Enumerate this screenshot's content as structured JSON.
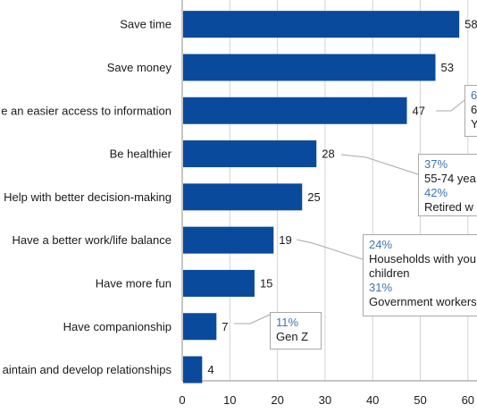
{
  "chart_data": {
    "type": "bar",
    "orientation": "horizontal",
    "categories": [
      "Save time",
      "Save money",
      "e an easier access to information",
      "Be healthier",
      "Help with better decision-making",
      "Have a better work/life balance",
      "Have more fun",
      "Have companionship",
      "aintain and develop relationships"
    ],
    "values": [
      58,
      53,
      47,
      28,
      25,
      19,
      15,
      7,
      4
    ],
    "value_labels": [
      "58",
      "53",
      "47",
      "28",
      "25",
      "19",
      "15",
      "7",
      "4"
    ],
    "xticks": [
      "0",
      "10",
      "20",
      "30",
      "40",
      "50",
      "60"
    ],
    "xlim": [
      0,
      60
    ],
    "grid": true,
    "bar_color": "#0a4a9c",
    "grid_color": "#d4d4d4",
    "callouts": [
      {
        "bar_index": 2,
        "lines": [
          {
            "pct": "6",
            "desc": "6"
          },
          {
            "pct": "",
            "desc": "Y"
          }
        ]
      },
      {
        "bar_index": 3,
        "lines": [
          {
            "pct": "37%",
            "desc": "55-74 yea"
          },
          {
            "pct": "42%",
            "desc": "Retired w"
          }
        ]
      },
      {
        "bar_index": 5,
        "lines": [
          {
            "pct": "24%",
            "desc": "Households with you children"
          },
          {
            "pct": "31%",
            "desc": "Government workers"
          }
        ]
      },
      {
        "bar_index": 7,
        "lines": [
          {
            "pct": "11%",
            "desc": "Gen Z"
          }
        ]
      }
    ],
    "accent_color": "#3b74b8"
  }
}
